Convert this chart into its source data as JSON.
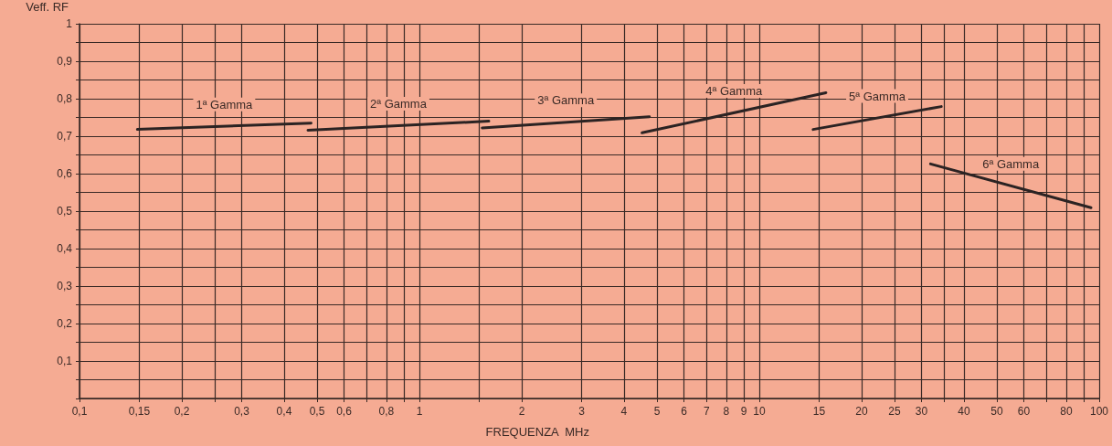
{
  "chart_data": {
    "type": "line",
    "xlabel": "FREQUENZA  MHz",
    "ylabel": "Veff. RF",
    "log": "x",
    "grid": true,
    "legend": false,
    "marker": "none",
    "line_style": "solid",
    "xlim": [
      0.1,
      100
    ],
    "ylim": [
      0,
      1
    ],
    "xticks": [
      {
        "value": 0.1,
        "label": "0,1"
      },
      {
        "value": 0.15,
        "label": "0,15"
      },
      {
        "value": 0.2,
        "label": "0,2"
      },
      {
        "value": 0.25,
        "label": null
      },
      {
        "value": 0.3,
        "label": "0,3"
      },
      {
        "value": 0.4,
        "label": "0,4"
      },
      {
        "value": 0.5,
        "label": "0,5"
      },
      {
        "value": 0.6,
        "label": "0,6"
      },
      {
        "value": 0.7,
        "label": null
      },
      {
        "value": 0.8,
        "label": "0,8"
      },
      {
        "value": 0.9,
        "label": null
      },
      1,
      {
        "value": 1.5,
        "label": null
      },
      2,
      3,
      4,
      5,
      6,
      7,
      8,
      9,
      10,
      15,
      20,
      25,
      30,
      {
        "value": 35,
        "label": null
      },
      40,
      50,
      60,
      {
        "value": 70,
        "label": null
      },
      80,
      {
        "value": 90,
        "label": null
      },
      100
    ],
    "yticks": [
      {
        "value": 0,
        "label": null
      },
      {
        "value": 0.05,
        "label": null
      },
      {
        "value": 0.1,
        "label": "0,1"
      },
      {
        "value": 0.15,
        "label": null
      },
      {
        "value": 0.2,
        "label": "0,2"
      },
      {
        "value": 0.25,
        "label": null
      },
      {
        "value": 0.3,
        "label": "0,3"
      },
      {
        "value": 0.35,
        "label": null
      },
      {
        "value": 0.4,
        "label": "0,4"
      },
      {
        "value": 0.45,
        "label": null
      },
      {
        "value": 0.5,
        "label": "0,5"
      },
      {
        "value": 0.55,
        "label": null
      },
      {
        "value": 0.6,
        "label": "0,6"
      },
      {
        "value": 0.65,
        "label": null
      },
      {
        "value": 0.7,
        "label": "0,7"
      },
      {
        "value": 0.75,
        "label": null
      },
      {
        "value": 0.8,
        "label": "0,8"
      },
      {
        "value": 0.85,
        "label": null
      },
      {
        "value": 0.9,
        "label": "0,9"
      },
      {
        "value": 0.95,
        "label": null
      },
      1
    ],
    "series": [
      {
        "name": "1ª Gamma",
        "color": "#2b2323",
        "x": [
          0.148,
          0.48
        ],
        "values": [
          0.718,
          0.735
        ]
      },
      {
        "name": "2ª Gamma",
        "color": "#2b2323",
        "x": [
          0.47,
          1.6
        ],
        "values": [
          0.716,
          0.74
        ]
      },
      {
        "name": "3ª Gamma",
        "color": "#2b2323",
        "x": [
          1.53,
          4.75
        ],
        "values": [
          0.722,
          0.752
        ]
      },
      {
        "name": "4ª Gamma",
        "color": "#2b2323",
        "x": [
          4.52,
          15.7
        ],
        "values": [
          0.709,
          0.816
        ]
      },
      {
        "name": "5ª Gamma",
        "color": "#2b2323",
        "x": [
          14.4,
          34.3
        ],
        "values": [
          0.718,
          0.779
        ]
      },
      {
        "name": "6ª Gamma",
        "color": "#2b2323",
        "x": [
          31.9,
          94.6
        ],
        "values": [
          0.626,
          0.509
        ]
      }
    ]
  }
}
